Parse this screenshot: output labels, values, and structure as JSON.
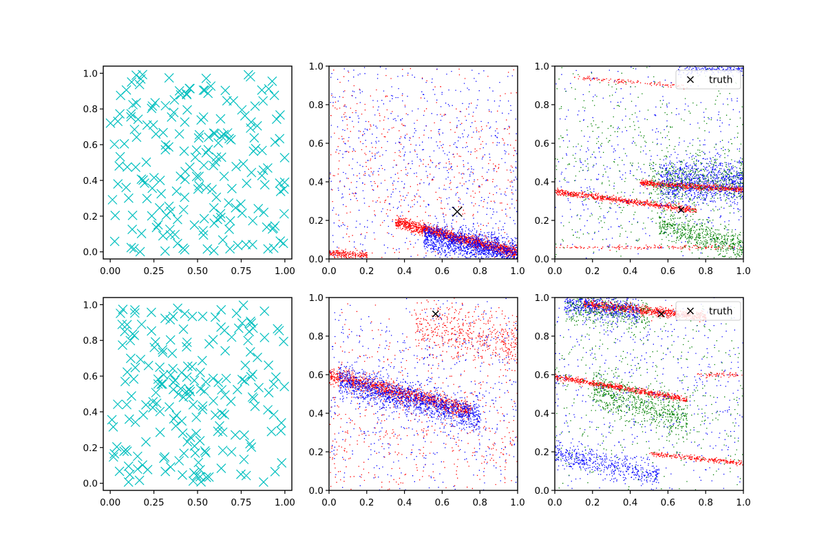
{
  "figure": {
    "background": "#ffffff",
    "rows": 2,
    "cols": 3
  },
  "colors": {
    "samples": "#00bfbf",
    "red": "#ff0000",
    "blue": "#0000ff",
    "green": "#008000",
    "truth": "#000000"
  },
  "chart_data": [
    {
      "type": "scatter",
      "panel": "row1-col1",
      "xlim": [
        -0.04,
        1.04
      ],
      "ylim": [
        -0.04,
        1.04
      ],
      "xticks": [
        0.0,
        0.25,
        0.5,
        0.75,
        1.0
      ],
      "xtick_labels": [
        "0.00",
        "0.25",
        "0.50",
        "0.75",
        "1.00"
      ],
      "yticks": [
        0.0,
        0.2,
        0.4,
        0.6,
        0.8,
        1.0
      ],
      "ytick_labels": [
        "0.0",
        "0.2",
        "0.4",
        "0.6",
        "0.8",
        "1.0"
      ],
      "series": [
        {
          "color": "samples",
          "marker": "x",
          "count": 200,
          "distribution": "uniform"
        }
      ]
    },
    {
      "type": "scatter",
      "panel": "row1-col2",
      "xlim": [
        0,
        1
      ],
      "ylim": [
        0,
        1
      ],
      "xticks": [
        0.0,
        0.2,
        0.4,
        0.6,
        0.8,
        1.0
      ],
      "xtick_labels": [
        "0.0",
        "0.2",
        "0.4",
        "0.6",
        "0.8",
        "1.0"
      ],
      "yticks": [
        0.0,
        0.2,
        0.4,
        0.6,
        0.8,
        1.0
      ],
      "ytick_labels": [
        "0.0",
        "0.2",
        "0.4",
        "0.6",
        "0.8",
        "1.0"
      ],
      "series": [
        {
          "color": "red",
          "clusters": [
            {
              "x": [
                0.35,
                1.0
              ],
              "y0": 0.28,
              "slope": -0.25,
              "spread": 0.015,
              "count": 1500
            },
            {
              "x": [
                0.0,
                0.2
              ],
              "y0": 0.03,
              "slope": -0.05,
              "spread": 0.01,
              "count": 200
            },
            {
              "x": [
                0.0,
                1.0
              ],
              "y0": 0.5,
              "slope": -0.1,
              "spread": 0.3,
              "count": 500
            }
          ]
        },
        {
          "color": "blue",
          "clusters": [
            {
              "x": [
                0.5,
                1.0
              ],
              "y0": 0.22,
              "slope": -0.2,
              "spread": 0.04,
              "count": 1400
            },
            {
              "x": [
                0.0,
                1.0
              ],
              "y0": 0.55,
              "slope": -0.1,
              "spread": 0.35,
              "count": 800
            }
          ]
        }
      ],
      "truth": {
        "x": 0.68,
        "y": 0.245,
        "size": "large"
      }
    },
    {
      "type": "scatter",
      "panel": "row1-col3",
      "xlim": [
        0,
        1
      ],
      "ylim": [
        0,
        1
      ],
      "xticks": [
        0.0,
        0.2,
        0.4,
        0.6,
        0.8,
        1.0
      ],
      "xtick_labels": [
        "0.0",
        "0.2",
        "0.4",
        "0.6",
        "0.8",
        "1.0"
      ],
      "yticks": [
        0.0,
        0.2,
        0.4,
        0.6,
        0.8,
        1.0
      ],
      "ytick_labels": [
        "0.0",
        "0.2",
        "0.4",
        "0.6",
        "0.8",
        "1.0"
      ],
      "legend": {
        "label": "truth",
        "position": "upper right"
      },
      "series": [
        {
          "color": "red",
          "clusters": [
            {
              "x": [
                0.0,
                0.75
              ],
              "y0": 0.35,
              "slope": -0.13,
              "spread": 0.008,
              "count": 700
            },
            {
              "x": [
                0.45,
                1.0
              ],
              "y0": 0.42,
              "slope": -0.06,
              "spread": 0.008,
              "count": 700
            },
            {
              "x": [
                0.0,
                1.0
              ],
              "y0": 0.06,
              "slope": 0.0,
              "spread": 0.005,
              "count": 150
            },
            {
              "x": [
                0.1,
                0.7
              ],
              "y0": 0.95,
              "slope": -0.08,
              "spread": 0.005,
              "count": 120
            }
          ]
        },
        {
          "color": "blue",
          "clusters": [
            {
              "x": [
                0.55,
                1.0
              ],
              "y0": 0.4,
              "slope": 0.0,
              "spread": 0.06,
              "count": 900
            },
            {
              "x": [
                0.65,
                1.0
              ],
              "y0": 0.98,
              "slope": 0.0,
              "spread": 0.015,
              "count": 200
            },
            {
              "x": [
                0.0,
                1.0
              ],
              "y0": 0.5,
              "slope": -0.1,
              "spread": 0.3,
              "count": 500
            }
          ]
        },
        {
          "color": "green",
          "clusters": [
            {
              "x": [
                0.55,
                1.0
              ],
              "y0": 0.35,
              "slope": -0.3,
              "spread": 0.04,
              "count": 600
            },
            {
              "x": [
                0.5,
                1.0
              ],
              "y0": 0.4,
              "slope": 0.0,
              "spread": 0.06,
              "count": 400
            },
            {
              "x": [
                0.0,
                1.0
              ],
              "y0": 0.5,
              "slope": 0.0,
              "spread": 0.3,
              "count": 500
            }
          ]
        }
      ],
      "truth": {
        "x": 0.67,
        "y": 0.255,
        "size": "small"
      }
    },
    {
      "type": "scatter",
      "panel": "row2-col1",
      "xlim": [
        -0.04,
        1.04
      ],
      "ylim": [
        -0.04,
        1.04
      ],
      "xticks": [
        0.0,
        0.25,
        0.5,
        0.75,
        1.0
      ],
      "xtick_labels": [
        "0.00",
        "0.25",
        "0.50",
        "0.75",
        "1.00"
      ],
      "yticks": [
        0.0,
        0.2,
        0.4,
        0.6,
        0.8,
        1.0
      ],
      "ytick_labels": [
        "0.0",
        "0.2",
        "0.4",
        "0.6",
        "0.8",
        "1.0"
      ],
      "series": [
        {
          "color": "samples",
          "marker": "x",
          "count": 200,
          "distribution": "uniform"
        }
      ]
    },
    {
      "type": "scatter",
      "panel": "row2-col2",
      "xlim": [
        0,
        1
      ],
      "ylim": [
        0,
        1
      ],
      "xticks": [
        0.0,
        0.2,
        0.4,
        0.6,
        0.8,
        1.0
      ],
      "xtick_labels": [
        "0.0",
        "0.2",
        "0.4",
        "0.6",
        "0.8",
        "1.0"
      ],
      "yticks": [
        0.0,
        0.2,
        0.4,
        0.6,
        0.8,
        1.0
      ],
      "ytick_labels": [
        "0.0",
        "0.2",
        "0.4",
        "0.6",
        "0.8",
        "1.0"
      ],
      "series": [
        {
          "color": "red",
          "clusters": [
            {
              "x": [
                0.0,
                0.75
              ],
              "y0": 0.6,
              "slope": -0.25,
              "spread": 0.02,
              "count": 1200
            },
            {
              "x": [
                0.45,
                1.0
              ],
              "y0": 0.92,
              "slope": -0.15,
              "spread": 0.07,
              "count": 500
            },
            {
              "x": [
                0.0,
                1.0
              ],
              "y0": 0.3,
              "slope": 0.0,
              "spread": 0.3,
              "count": 600
            }
          ]
        },
        {
          "color": "blue",
          "clusters": [
            {
              "x": [
                0.05,
                0.8
              ],
              "y0": 0.58,
              "slope": -0.25,
              "spread": 0.04,
              "count": 1400
            },
            {
              "x": [
                0.0,
                1.0
              ],
              "y0": 0.5,
              "slope": 0.0,
              "spread": 0.35,
              "count": 700
            }
          ]
        }
      ],
      "truth": {
        "x": 0.565,
        "y": 0.915,
        "size": "small"
      }
    },
    {
      "type": "scatter",
      "panel": "row2-col3",
      "xlim": [
        0,
        1
      ],
      "ylim": [
        0,
        1
      ],
      "xticks": [
        0.0,
        0.2,
        0.4,
        0.6,
        0.8,
        1.0
      ],
      "xtick_labels": [
        "0.0",
        "0.2",
        "0.4",
        "0.6",
        "0.8",
        "1.0"
      ],
      "yticks": [
        0.0,
        0.2,
        0.4,
        0.6,
        0.8,
        1.0
      ],
      "ytick_labels": [
        "0.0",
        "0.2",
        "0.4",
        "0.6",
        "0.8",
        "1.0"
      ],
      "legend": {
        "label": "truth",
        "position": "upper right"
      },
      "series": [
        {
          "color": "red",
          "clusters": [
            {
              "x": [
                0.15,
                0.8
              ],
              "y0": 0.98,
              "slope": -0.1,
              "spread": 0.012,
              "count": 900
            },
            {
              "x": [
                0.0,
                0.7
              ],
              "y0": 0.59,
              "slope": -0.17,
              "spread": 0.008,
              "count": 700
            },
            {
              "x": [
                0.5,
                1.0
              ],
              "y0": 0.24,
              "slope": -0.1,
              "spread": 0.006,
              "count": 250
            },
            {
              "x": [
                0.75,
                1.0
              ],
              "y0": 0.6,
              "slope": 0.0,
              "spread": 0.006,
              "count": 60
            }
          ]
        },
        {
          "color": "blue",
          "clusters": [
            {
              "x": [
                0.05,
                0.45
              ],
              "y0": 0.97,
              "slope": -0.1,
              "spread": 0.03,
              "count": 500
            },
            {
              "x": [
                0.0,
                0.55
              ],
              "y0": 0.19,
              "slope": -0.2,
              "spread": 0.03,
              "count": 500
            },
            {
              "x": [
                0.0,
                1.0
              ],
              "y0": 0.5,
              "slope": 0.0,
              "spread": 0.35,
              "count": 600
            }
          ]
        },
        {
          "color": "green",
          "clusters": [
            {
              "x": [
                0.2,
                0.7
              ],
              "y0": 0.58,
              "slope": -0.3,
              "spread": 0.05,
              "count": 600
            },
            {
              "x": [
                0.05,
                0.5
              ],
              "y0": 0.95,
              "slope": -0.1,
              "spread": 0.04,
              "count": 300
            },
            {
              "x": [
                0.0,
                1.0
              ],
              "y0": 0.5,
              "slope": 0.0,
              "spread": 0.35,
              "count": 500
            }
          ]
        }
      ],
      "truth": {
        "x": 0.565,
        "y": 0.915,
        "size": "small"
      }
    }
  ]
}
